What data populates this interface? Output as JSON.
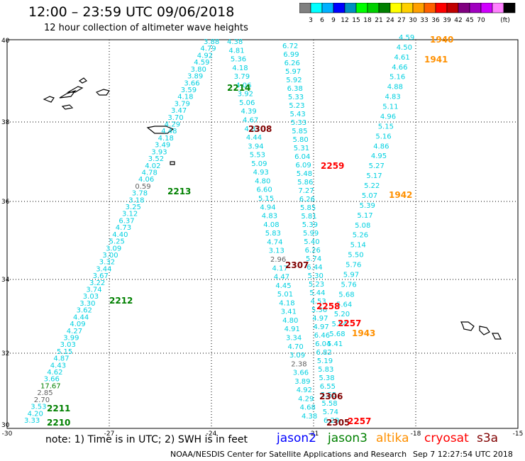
{
  "header": {
    "title": "12:00 – 23:59 UTC 09/06/2018",
    "subtitle": "12 hour collection of altimeter wave heights"
  },
  "legend": {
    "colors": [
      "#808080",
      "#00ffff",
      "#00b0ff",
      "#0000ff",
      "#0090c0",
      "#00ff00",
      "#00d000",
      "#008000",
      "#ffff00",
      "#ffd000",
      "#ffa000",
      "#ff6000",
      "#ff0000",
      "#c00000",
      "#800080",
      "#a000c0",
      "#d000ff",
      "#ff80ff",
      "#000000"
    ],
    "labels": [
      "3",
      "6",
      "9",
      "12",
      "15",
      "18",
      "21",
      "24",
      "27",
      "30",
      "33",
      "36",
      "39",
      "42",
      "45",
      "70",
      "(ft)"
    ]
  },
  "axes": {
    "x_labels": [
      "-30",
      "-27",
      "-24",
      "-21",
      "-18",
      "-15"
    ],
    "y_labels": [
      "40",
      "38",
      "36",
      "34",
      "32",
      "30"
    ]
  },
  "tracks": [
    {
      "name": "track-a",
      "color": "#00d0e0",
      "values": [
        "3.33",
        "4.20",
        "3.53",
        "2.70",
        "2.85",
        "17.67",
        "3.66",
        "4.62",
        "4.43",
        "4.87",
        "5.15",
        "3.03",
        "3.99",
        "4.27",
        "4.09",
        "4.44",
        "3.62",
        "3.30",
        "3.03",
        "3.74",
        "3.22",
        "3.67",
        "3.44",
        "3.32",
        "3.00",
        "3.09",
        "5.25",
        "4.40",
        "4.73",
        "6.37",
        "3.12",
        "3.25",
        "3.18",
        "3.78",
        "0.59",
        "4.06",
        "4.78",
        "4.02",
        "3.52",
        "3.93",
        "3.49",
        "4.18",
        "4.48",
        "4.29",
        "3.70",
        "3.47",
        "3.79",
        "4.18",
        "3.59",
        "3.66",
        "3.89",
        "3.80",
        "4.59",
        "4.92",
        "4.79",
        "3.88"
      ]
    },
    {
      "name": "track-b",
      "color": "#00d0e0",
      "values": [
        "4.38",
        "4.68",
        "4.29",
        "4.92",
        "3.89",
        "3.66",
        "2.38",
        "3.09",
        "4.70",
        "3.34",
        "4.91",
        "4.80",
        "3.41",
        "4.18",
        "5.01",
        "4.45",
        "4.47",
        "4.17",
        "2.96",
        "3.13",
        "4.74",
        "5.83",
        "4.08",
        "4.83",
        "4.94",
        "5.15",
        "6.60",
        "4.80",
        "4.93",
        "5.09",
        "5.53",
        "3.94",
        "4.44",
        "4.87",
        "4.67",
        "4.39",
        "5.06",
        "3.92",
        "4.06",
        "3.79",
        "4.18",
        "5.36",
        "4.81",
        "4.38"
      ]
    },
    {
      "name": "track-c",
      "color": "#00d0e0",
      "values": [
        "6.29",
        "5.74",
        "5.58",
        "5.55",
        "6.55",
        "5.38",
        "5.83",
        "5.19",
        "6.82",
        "6.04",
        "6.46",
        "4.97",
        "4.97",
        "5.36",
        "4.53",
        "5.44",
        "5.23",
        "5.30",
        "6.44",
        "5.74",
        "6.26",
        "5.40",
        "5.99",
        "5.39",
        "5.81",
        "5.85",
        "6.26",
        "7.27",
        "5.86",
        "5.48",
        "6.09",
        "6.04",
        "5.31",
        "5.80",
        "5.85",
        "5.33",
        "5.43",
        "5.23",
        "5.33",
        "6.38",
        "5.92",
        "5.97",
        "6.26",
        "6.99",
        "6.72"
      ]
    },
    {
      "name": "track-d",
      "color": "#00d0e0",
      "values": [
        "5.41",
        "5.68",
        "5.54",
        "5.20",
        "5.64",
        "5.68",
        "5.76",
        "5.97",
        "5.76",
        "5.50",
        "5.14",
        "5.26",
        "5.08",
        "5.17",
        "5.39",
        "5.07",
        "5.22",
        "5.17",
        "5.27",
        "4.95",
        "4.86",
        "5.16",
        "5.15",
        "4.96",
        "5.11",
        "4.83",
        "4.88",
        "5.16",
        "4.66",
        "4.61",
        "4.50",
        "4.59"
      ]
    }
  ],
  "pass_labels": [
    {
      "text": "2210",
      "color": "#008000"
    },
    {
      "text": "2211",
      "color": "#008000"
    },
    {
      "text": "2212",
      "color": "#008000"
    },
    {
      "text": "2213",
      "color": "#008000"
    },
    {
      "text": "2214",
      "color": "#008000"
    },
    {
      "text": "2308",
      "color": "#800000"
    },
    {
      "text": "2307",
      "color": "#800000"
    },
    {
      "text": "2306",
      "color": "#800000"
    },
    {
      "text": "2305",
      "color": "#800000"
    },
    {
      "text": "2259",
      "color": "#ff0000"
    },
    {
      "text": "2258",
      "color": "#ff0000"
    },
    {
      "text": "2257",
      "color": "#ff0000"
    },
    {
      "text": "2257",
      "color": "#ff0000"
    },
    {
      "text": "1940",
      "color": "#ff9000"
    },
    {
      "text": "1941",
      "color": "#ff9000"
    },
    {
      "text": "1942",
      "color": "#ff9000"
    },
    {
      "text": "1943",
      "color": "#ff9000"
    }
  ],
  "footer": {
    "note": "note:  1) Time is in UTC;  2) SWH is in feet",
    "satellites": [
      {
        "name": "jason2",
        "color": "#0000ff"
      },
      {
        "name": "jason3",
        "color": "#008000"
      },
      {
        "name": "altika",
        "color": "#ff9000"
      },
      {
        "name": "cryosat",
        "color": "#ff0000"
      },
      {
        "name": "s3a",
        "color": "#800000"
      }
    ],
    "credit": "NOAA/NESDIS Center for Satellite Applications and Research",
    "timestamp": "Sep  7 12:27:54 UTC 2018"
  }
}
